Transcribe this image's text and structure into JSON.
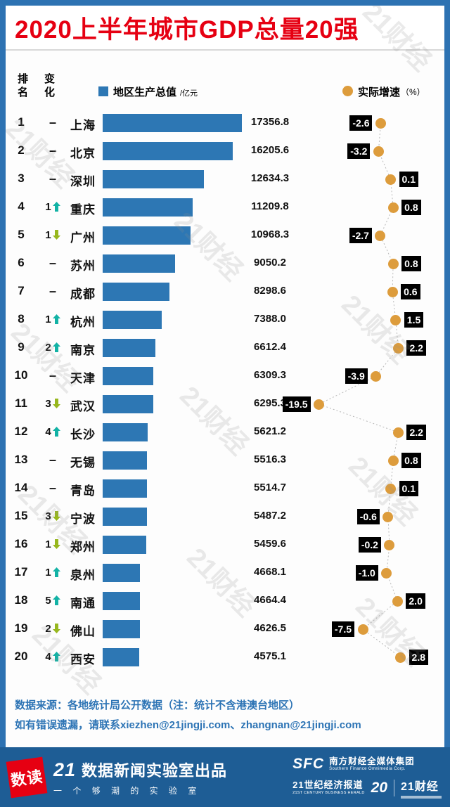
{
  "title": "2020上半年城市GDP总量20强",
  "watermark": "21财经",
  "legend": {
    "rank_header": "排名",
    "change_header": "变化",
    "gdp_label": "地区生产总值",
    "gdp_unit": "/亿元",
    "growth_label": "实际增速",
    "growth_unit": "（%）"
  },
  "colors": {
    "frame_blue": "#2d72b2",
    "bar_blue": "#2d77b4",
    "dot_orange": "#dd9c3c",
    "title_red": "#e60012",
    "up_teal": "#12b2a5",
    "down_green": "#97b71e",
    "growth_label_bg": "#000000",
    "footer_text_blue": "#2d74b5",
    "band_blue": "#1e5d95"
  },
  "chart_data": {
    "type": "bar",
    "orientation": "horizontal",
    "title": "2020上半年城市GDP总量20强",
    "categories": [
      "上海",
      "北京",
      "深圳",
      "重庆",
      "广州",
      "苏州",
      "成都",
      "杭州",
      "南京",
      "天津",
      "武汉",
      "长沙",
      "无锡",
      "青岛",
      "宁波",
      "郑州",
      "泉州",
      "南通",
      "佛山",
      "西安"
    ],
    "series": [
      {
        "name": "地区生产总值/亿元",
        "values": [
          17356.8,
          16205.6,
          12634.3,
          11209.8,
          10968.3,
          9050.2,
          8298.6,
          7388.0,
          6612.4,
          6309.3,
          6295.3,
          5621.2,
          5516.3,
          5514.7,
          5487.2,
          5459.6,
          4668.1,
          4664.4,
          4626.5,
          4575.1
        ]
      },
      {
        "name": "实际增速（%）",
        "values": [
          -2.6,
          -3.2,
          0.1,
          0.8,
          -2.7,
          0.8,
          0.6,
          1.5,
          2.2,
          -3.9,
          -19.5,
          2.2,
          0.8,
          0.1,
          -0.6,
          -0.2,
          -1.0,
          2.0,
          -7.5,
          2.8
        ]
      }
    ],
    "gdp_axis": [
      0,
      17356.8
    ],
    "growth_axis_approx": [
      -20,
      3
    ],
    "rows": [
      {
        "rank": "1",
        "change": "–",
        "dir": "",
        "city": "上海",
        "gdp": "17356.8",
        "growth": "-2.6"
      },
      {
        "rank": "2",
        "change": "–",
        "dir": "",
        "city": "北京",
        "gdp": "16205.6",
        "growth": "-3.2"
      },
      {
        "rank": "3",
        "change": "–",
        "dir": "",
        "city": "深圳",
        "gdp": "12634.3",
        "growth": "0.1"
      },
      {
        "rank": "4",
        "change": "1",
        "dir": "up",
        "city": "重庆",
        "gdp": "11209.8",
        "growth": "0.8"
      },
      {
        "rank": "5",
        "change": "1",
        "dir": "down",
        "city": "广州",
        "gdp": "10968.3",
        "growth": "-2.7"
      },
      {
        "rank": "6",
        "change": "–",
        "dir": "",
        "city": "苏州",
        "gdp": "9050.2",
        "growth": "0.8"
      },
      {
        "rank": "7",
        "change": "–",
        "dir": "",
        "city": "成都",
        "gdp": "8298.6",
        "growth": "0.6"
      },
      {
        "rank": "8",
        "change": "1",
        "dir": "up",
        "city": "杭州",
        "gdp": "7388.0",
        "growth": "1.5"
      },
      {
        "rank": "9",
        "change": "2",
        "dir": "up",
        "city": "南京",
        "gdp": "6612.4",
        "growth": "2.2"
      },
      {
        "rank": "10",
        "change": "–",
        "dir": "",
        "city": "天津",
        "gdp": "6309.3",
        "growth": "-3.9"
      },
      {
        "rank": "11",
        "change": "3",
        "dir": "down",
        "city": "武汉",
        "gdp": "6295.3",
        "growth": "-19.5"
      },
      {
        "rank": "12",
        "change": "4",
        "dir": "up",
        "city": "长沙",
        "gdp": "5621.2",
        "growth": "2.2"
      },
      {
        "rank": "13",
        "change": "–",
        "dir": "",
        "city": "无锡",
        "gdp": "5516.3",
        "growth": "0.8"
      },
      {
        "rank": "14",
        "change": "–",
        "dir": "",
        "city": "青岛",
        "gdp": "5514.7",
        "growth": "0.1"
      },
      {
        "rank": "15",
        "change": "3",
        "dir": "down",
        "city": "宁波",
        "gdp": "5487.2",
        "growth": "-0.6"
      },
      {
        "rank": "16",
        "change": "1",
        "dir": "down",
        "city": "郑州",
        "gdp": "5459.6",
        "growth": "-0.2"
      },
      {
        "rank": "17",
        "change": "1",
        "dir": "up",
        "city": "泉州",
        "gdp": "4668.1",
        "growth": "-1.0"
      },
      {
        "rank": "18",
        "change": "5",
        "dir": "up",
        "city": "南通",
        "gdp": "4664.4",
        "growth": "2.0"
      },
      {
        "rank": "19",
        "change": "2",
        "dir": "down",
        "city": "佛山",
        "gdp": "4626.5",
        "growth": "-7.5"
      },
      {
        "rank": "20",
        "change": "4",
        "dir": "up",
        "city": "西安",
        "gdp": "4575.1",
        "growth": "2.8"
      }
    ]
  },
  "footer": {
    "source_line": "数据来源：各地统计局公开数据（注：统计不含港澳台地区）",
    "contact_line": "如有错误遗漏，请联系xiezhen@21jingji.com、zhangnan@21jingji.com",
    "brand": {
      "logo_text": "数读",
      "studio_prefix": "21",
      "studio_text": "数据新闻实验室出品",
      "slogan": "一 个 够 潮 的 实 验 室",
      "sfc": "SFC",
      "sfc_cn": "南方财经全媒体集团",
      "sfc_en": "Southern Finance Omnimedia Corp.",
      "herald_cn": "21世纪经济报道",
      "herald_en": "21ST CENTURY BUSINESS HERALD",
      "anniv": "20",
      "jingji": "21财经"
    }
  }
}
